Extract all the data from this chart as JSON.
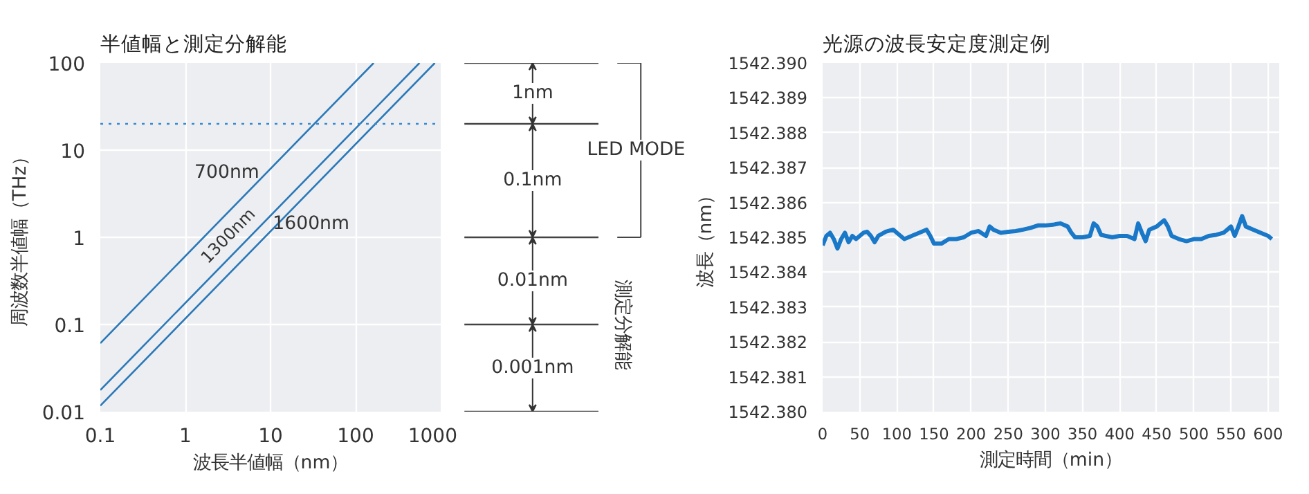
{
  "chart_data": [
    {
      "type": "line",
      "title": "半値幅と測定分解能",
      "xlabel": "波長半値幅（nm）",
      "ylabel": "周波数半値幅（THz）",
      "log": "xy",
      "grid": true,
      "xlim": [
        0.1,
        1000
      ],
      "ylim": [
        0.01,
        100
      ],
      "xticks": [
        0.1,
        1,
        10,
        100,
        1000
      ],
      "yticks": [
        0.01,
        0.1,
        1,
        10,
        100
      ],
      "series": [
        {
          "name": "700nm",
          "color": "#2a78b8",
          "x": [
            0.1,
            163
          ],
          "values": [
            0.061,
            100
          ]
        },
        {
          "name": "1300nm",
          "color": "#2a78b8",
          "x": [
            0.1,
            563
          ],
          "values": [
            0.0177,
            100
          ]
        },
        {
          "name": "1600nm",
          "color": "#2a78b8",
          "x": [
            0.1,
            853
          ],
          "values": [
            0.0117,
            100
          ]
        }
      ],
      "ref_lines": [
        {
          "axis": "y",
          "value": 20,
          "color": "#3a8ad0",
          "line_style": "dotted"
        }
      ],
      "annotations": [
        "1nm",
        "0.1nm",
        "0.01nm",
        "0.001nm",
        "LED MODE",
        "測定分解能"
      ]
    },
    {
      "type": "line",
      "title": "光源の波長安定度測定例",
      "xlabel": "測定時間（min）",
      "ylabel": "波長（nm）",
      "grid": true,
      "color": "#1a78c8",
      "xlim": [
        0,
        615
      ],
      "ylim": [
        1542.38,
        1542.39
      ],
      "xticks": [
        0,
        50,
        100,
        150,
        200,
        250,
        300,
        350,
        400,
        450,
        500,
        550,
        600
      ],
      "yticks": [
        {
          "value": 1542.38,
          "label": "1542.380"
        },
        {
          "value": 1542.381,
          "label": "1542.381"
        },
        {
          "value": 1542.382,
          "label": "1542.382"
        },
        {
          "value": 1542.383,
          "label": "1542.383"
        },
        {
          "value": 1542.384,
          "label": "1542.384"
        },
        {
          "value": 1542.385,
          "label": "1542.385"
        },
        {
          "value": 1542.386,
          "label": "1542.386"
        },
        {
          "value": 1542.387,
          "label": "1542.387"
        },
        {
          "value": 1542.388,
          "label": "1542.388"
        },
        {
          "value": 1542.389,
          "label": "1542.389"
        },
        {
          "value": 1542.39,
          "label": "1542.390"
        }
      ],
      "x": [
        0,
        5,
        10,
        15,
        20,
        25,
        30,
        35,
        40,
        45,
        55,
        60,
        65,
        70,
        75,
        85,
        95,
        100,
        105,
        110,
        120,
        130,
        140,
        145,
        150,
        160,
        170,
        180,
        190,
        200,
        210,
        220,
        225,
        230,
        240,
        250,
        260,
        270,
        280,
        290,
        300,
        310,
        320,
        330,
        335,
        340,
        350,
        360,
        365,
        370,
        375,
        390,
        400,
        410,
        420,
        425,
        430,
        435,
        440,
        450,
        460,
        465,
        470,
        480,
        490,
        500,
        510,
        520,
        530,
        540,
        550,
        555,
        560,
        565,
        570,
        580,
        590,
        600,
        605
      ],
      "values": [
        1542.38477,
        1542.38504,
        1542.38513,
        1542.38495,
        1542.38468,
        1542.38495,
        1542.38513,
        1542.38486,
        1542.38504,
        1542.38495,
        1542.38513,
        1542.38516,
        1542.38504,
        1542.38486,
        1542.38504,
        1542.38516,
        1542.38522,
        1542.38513,
        1542.38504,
        1542.38495,
        1542.38504,
        1542.38513,
        1542.38522,
        1542.38504,
        1542.38482,
        1542.38482,
        1542.38495,
        1542.38495,
        1542.385,
        1542.38513,
        1542.38518,
        1542.38504,
        1542.38531,
        1542.38522,
        1542.38513,
        1542.38516,
        1542.38518,
        1542.38522,
        1542.38527,
        1542.38534,
        1542.38534,
        1542.38536,
        1542.3854,
        1542.38531,
        1542.38513,
        1542.385,
        1542.385,
        1542.38504,
        1542.3854,
        1542.38531,
        1542.38507,
        1542.385,
        1542.38504,
        1542.38504,
        1542.38495,
        1542.3854,
        1542.38513,
        1542.38489,
        1542.38522,
        1542.38531,
        1542.38549,
        1542.38531,
        1542.38504,
        1542.38495,
        1542.38489,
        1542.38495,
        1542.38495,
        1542.38504,
        1542.38507,
        1542.38513,
        1542.38531,
        1542.38504,
        1542.38531,
        1542.38561,
        1542.38531,
        1542.38522,
        1542.38513,
        1542.38504,
        1542.38495
      ]
    }
  ]
}
